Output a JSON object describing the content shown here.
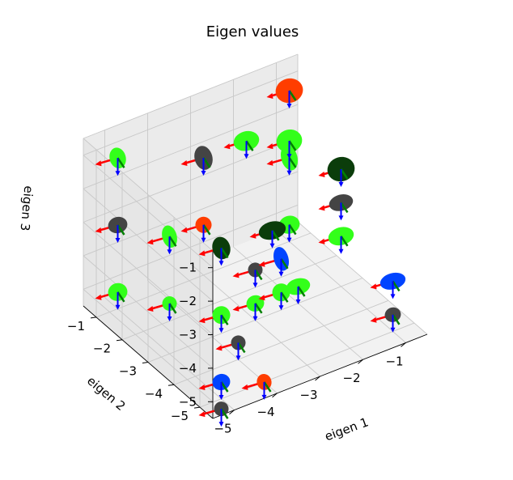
{
  "chart_data": {
    "type": "scatter3d",
    "title": "Eigen values",
    "xlabel": "eigen 1",
    "ylabel": "eigen 2",
    "zlabel": "eigen 3",
    "xlim": [
      -5.5,
      -0.5
    ],
    "ylim": [
      -5.5,
      -0.5
    ],
    "zlim": [
      -5.5,
      -0.5
    ],
    "xticks": [
      "−5",
      "−4",
      "−3",
      "−2",
      "−1"
    ],
    "yticks": [
      "−1",
      "−2",
      "−3",
      "−4",
      "−5"
    ],
    "zticks": [
      "−1",
      "−2",
      "−3",
      "−4",
      "−5"
    ],
    "grid": true,
    "glyph": "ellipsoid with red, green and blue eigenvector arrows",
    "colors": {
      "dark_green": "#0b3d0b",
      "bright_green": "#33ff1a",
      "gray": "#444444",
      "blue": "#0044ff",
      "orange_red": "#ff3d00",
      "arrow_red": "#ff0000",
      "arrow_green": "#008000",
      "arrow_blue": "#0000ff"
    },
    "points": [
      {
        "x": -5,
        "y": -5,
        "z": -1,
        "color": "dark_green",
        "rx": 11,
        "ry": 14
      },
      {
        "x": -5,
        "y": -5,
        "z": -3,
        "color": "bright_green",
        "rx": 11,
        "ry": 11
      },
      {
        "x": -5,
        "y": -5,
        "z": -5,
        "color": "blue",
        "rx": 11,
        "ry": 10
      },
      {
        "x": -5,
        "y": -3,
        "z": -2,
        "color": "bright_green",
        "rx": 9,
        "ry": 14
      },
      {
        "x": -5,
        "y": -3,
        "z": -4,
        "color": "bright_green",
        "rx": 9,
        "ry": 9
      },
      {
        "x": -5,
        "y": -1,
        "z": -1,
        "color": "bright_green",
        "rx": 10,
        "ry": 13
      },
      {
        "x": -5,
        "y": -1,
        "z": -3,
        "color": "gray",
        "rx": 12,
        "ry": 10
      },
      {
        "x": -5,
        "y": -1,
        "z": -5,
        "color": "bright_green",
        "rx": 12,
        "ry": 11
      },
      {
        "x": -4,
        "y": -4,
        "z": -5,
        "color": "gray",
        "rx": 9,
        "ry": 9
      },
      {
        "x": -5,
        "y": -5,
        "z": -5.8,
        "color": "gray",
        "rx": 9,
        "ry": 9
      },
      {
        "x": -4,
        "y": -5,
        "z": -5.5,
        "color": "orange_red",
        "rx": 9,
        "ry": 10
      },
      {
        "x": -3,
        "y": -4,
        "z": -3,
        "color": "blue",
        "rx": 9,
        "ry": 15
      },
      {
        "x": -3,
        "y": -4,
        "z": -4,
        "color": "bright_green",
        "rx": 11,
        "ry": 11
      },
      {
        "x": -3,
        "y": -3,
        "z": -4,
        "color": "gray",
        "rx": 9,
        "ry": 9
      },
      {
        "x": -3,
        "y": -3,
        "z": -5,
        "color": "bright_green",
        "rx": 11,
        "ry": 10
      },
      {
        "x": -3,
        "y": -1,
        "z": -2,
        "color": "gray",
        "rx": 11,
        "ry": 15
      },
      {
        "x": -3,
        "y": -1,
        "z": -4,
        "color": "orange_red",
        "rx": 10,
        "ry": 10
      },
      {
        "x": -1,
        "y": -1,
        "z": -1,
        "color": "orange_red",
        "rx": 17,
        "ry": 15
      },
      {
        "x": -1,
        "y": -1,
        "z": -3,
        "color": "bright_green",
        "rx": 10,
        "ry": 16
      },
      {
        "x": -1,
        "y": -1,
        "z": -5,
        "color": "bright_green",
        "rx": 13,
        "ry": 11
      },
      {
        "x": -2,
        "y": -1,
        "z": -2,
        "color": "bright_green",
        "rx": 16,
        "ry": 12
      },
      {
        "x": -2,
        "y": -2,
        "z": -4,
        "color": "dark_green",
        "rx": 17,
        "ry": 11
      },
      {
        "x": -1,
        "y": -5,
        "z": -5,
        "color": "gray",
        "rx": 10,
        "ry": 9
      },
      {
        "x": -1,
        "y": -3,
        "z": -3,
        "color": "gray",
        "rx": 15,
        "ry": 10
      },
      {
        "x": -1,
        "y": -1,
        "z": -2.5,
        "color": "bright_green",
        "rx": 16,
        "ry": 14
      },
      {
        "x": -1,
        "y": -3,
        "z": -2,
        "color": "dark_green",
        "rx": 17,
        "ry": 15
      },
      {
        "x": -1,
        "y": -3,
        "z": -4,
        "color": "bright_green",
        "rx": 16,
        "ry": 11
      },
      {
        "x": -1,
        "y": -5,
        "z": -4,
        "color": "blue",
        "rx": 16,
        "ry": 10
      },
      {
        "x": -2,
        "y": -3,
        "z": -5,
        "color": "bright_green",
        "rx": 15,
        "ry": 10
      }
    ]
  }
}
